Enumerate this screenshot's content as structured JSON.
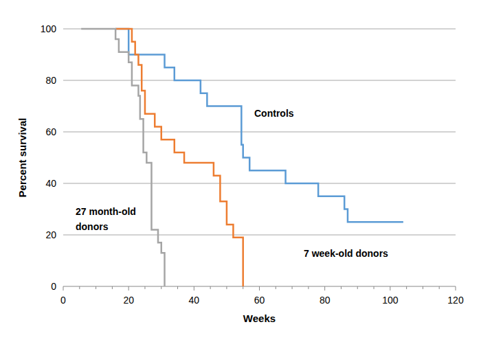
{
  "chart_data": {
    "type": "step",
    "x_label": "Weeks",
    "y_label": "Percent survival",
    "xlim": [
      0,
      120
    ],
    "ylim": [
      0,
      100
    ],
    "xticks": [
      0,
      20,
      40,
      60,
      80,
      100,
      120
    ],
    "yticks": [
      0,
      20,
      40,
      60,
      80,
      100
    ],
    "grid": true,
    "series": [
      {
        "name": "Controls",
        "color": "#5b9bd5",
        "x": [
          16,
          20,
          31,
          34,
          42,
          44,
          54.5,
          55,
          57,
          68,
          78,
          86,
          87,
          104
        ],
        "values": [
          100,
          90,
          85,
          80,
          75,
          70,
          55,
          50,
          45,
          40,
          35,
          30,
          25,
          25
        ]
      },
      {
        "name": "7 week-old donors",
        "color": "#ed7d31",
        "x": [
          16,
          21,
          22,
          23,
          24,
          25,
          28,
          30,
          34,
          37,
          46,
          48,
          50,
          52,
          55
        ],
        "values": [
          100,
          95,
          90,
          86,
          76,
          67,
          62,
          57,
          52,
          48,
          43,
          33,
          24,
          19,
          0
        ]
      },
      {
        "name": "27 month-old donors",
        "color": "#a5a5a5",
        "x": [
          5.5,
          16,
          17,
          20,
          21,
          23,
          23.5,
          24.5,
          25.5,
          27,
          29,
          30,
          31
        ],
        "values": [
          100,
          96,
          91,
          87,
          78,
          74,
          65,
          52,
          48,
          22,
          17,
          13,
          0
        ]
      }
    ]
  }
}
